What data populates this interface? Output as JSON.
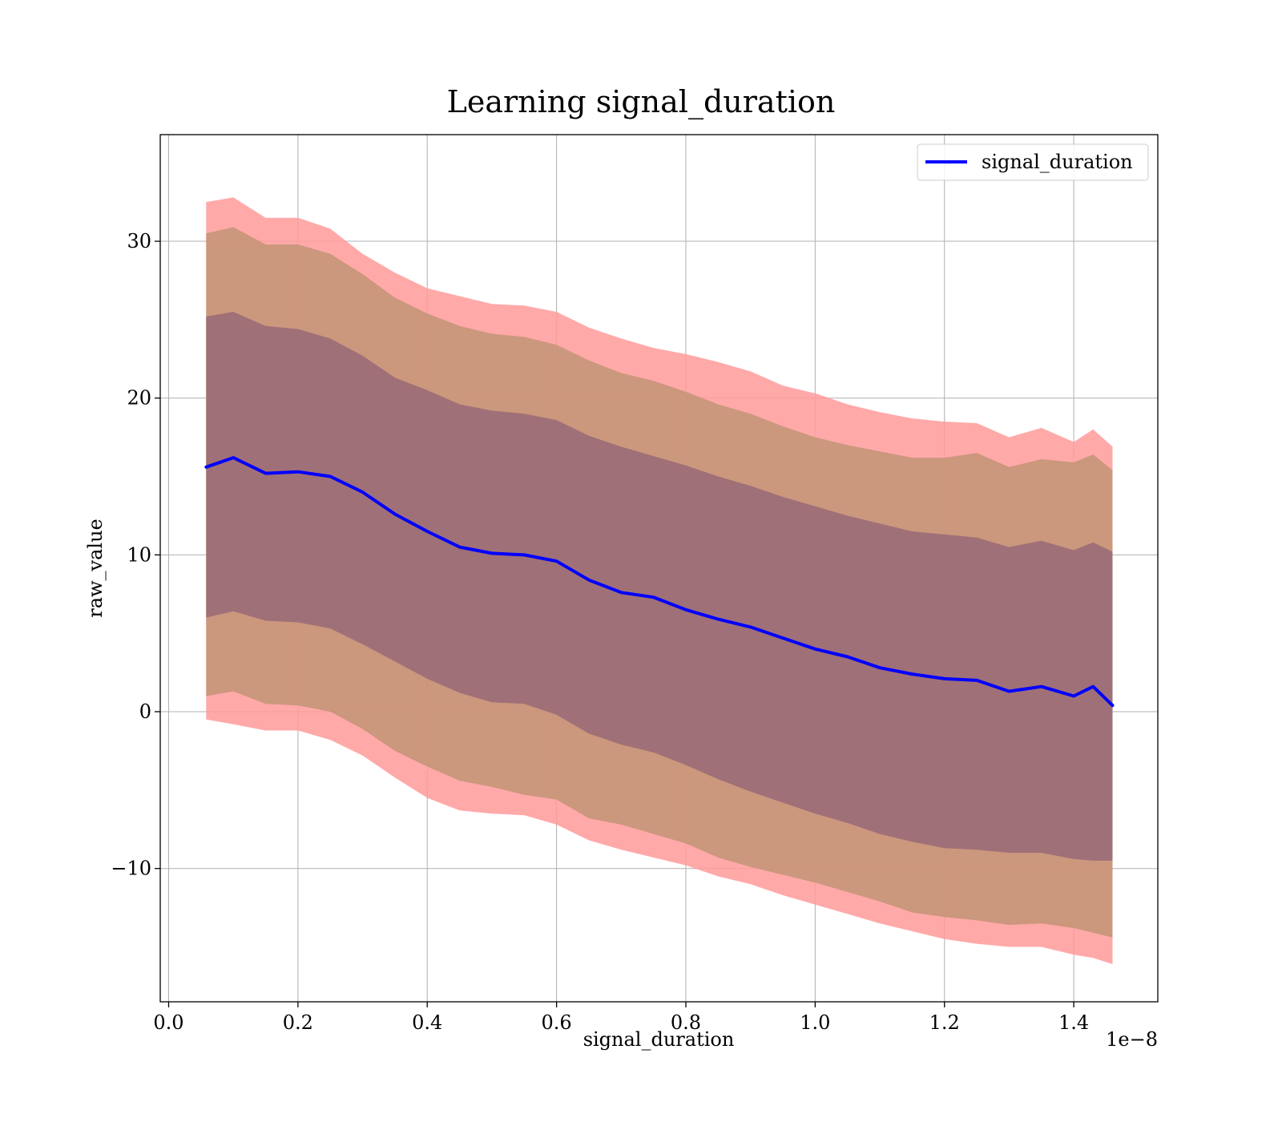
{
  "chart_data": {
    "type": "line",
    "title": "Learning signal_duration",
    "xlabel": "signal_duration",
    "ylabel": "raw_value",
    "x_offset_label": "1e−8",
    "xlim": [
      -0.013,
      1.53
    ],
    "ylim": [
      -18.5,
      36.8
    ],
    "xticks": [
      0.0,
      0.2,
      0.4,
      0.6,
      0.8,
      1.0,
      1.2,
      1.4
    ],
    "xtick_labels": [
      "0.0",
      "0.2",
      "0.4",
      "0.6",
      "0.8",
      "1.0",
      "1.2",
      "1.4"
    ],
    "yticks": [
      -10,
      0,
      10,
      20,
      30
    ],
    "ytick_labels": [
      "−10",
      "0",
      "10",
      "20",
      "30"
    ],
    "grid": true,
    "legend": {
      "position": "top-right",
      "entries": [
        "signal_duration"
      ]
    },
    "colors": {
      "line": "#0000ff",
      "band_outer": "#ff9a9a",
      "band_middle": "#c8967a",
      "band_inner": "#a07078",
      "grid": "#b0b0b0"
    },
    "x": [
      0.058,
      0.1,
      0.15,
      0.2,
      0.25,
      0.3,
      0.35,
      0.4,
      0.45,
      0.5,
      0.55,
      0.6,
      0.65,
      0.7,
      0.75,
      0.8,
      0.85,
      0.9,
      0.95,
      1.0,
      1.05,
      1.1,
      1.15,
      1.2,
      1.25,
      1.3,
      1.35,
      1.4,
      1.43,
      1.46
    ],
    "series": [
      {
        "name": "signal_duration",
        "values": [
          15.6,
          16.2,
          15.2,
          15.3,
          15.0,
          14.0,
          12.6,
          11.5,
          10.5,
          10.1,
          10.0,
          9.6,
          8.4,
          7.6,
          7.3,
          6.5,
          5.9,
          5.4,
          4.7,
          4.0,
          3.5,
          2.8,
          2.4,
          2.1,
          2.0,
          1.3,
          1.6,
          1.0,
          1.6,
          0.4
        ]
      }
    ],
    "bands": [
      {
        "upper": [
          32.5,
          32.8,
          31.5,
          31.5,
          30.8,
          29.2,
          28.0,
          27.0,
          26.5,
          26.0,
          25.9,
          25.5,
          24.5,
          23.8,
          23.2,
          22.8,
          22.3,
          21.7,
          20.8,
          20.3,
          19.6,
          19.1,
          18.7,
          18.5,
          18.4,
          17.5,
          18.1,
          17.2,
          18.0,
          16.9
        ],
        "lower": [
          -0.5,
          -0.8,
          -1.2,
          -1.2,
          -1.8,
          -2.8,
          -4.2,
          -5.5,
          -6.3,
          -6.5,
          -6.6,
          -7.2,
          -8.2,
          -8.8,
          -9.3,
          -9.8,
          -10.5,
          -11.0,
          -11.7,
          -12.3,
          -12.9,
          -13.5,
          -14.0,
          -14.5,
          -14.8,
          -15.0,
          -15.0,
          -15.5,
          -15.7,
          -16.1
        ]
      },
      {
        "upper": [
          30.5,
          30.9,
          29.8,
          29.8,
          29.2,
          27.9,
          26.4,
          25.4,
          24.6,
          24.1,
          23.9,
          23.4,
          22.4,
          21.6,
          21.1,
          20.4,
          19.6,
          19.0,
          18.2,
          17.5,
          17.0,
          16.6,
          16.2,
          16.2,
          16.5,
          15.6,
          16.1,
          15.9,
          16.4,
          15.4
        ],
        "lower": [
          1.0,
          1.3,
          0.5,
          0.4,
          0.0,
          -1.1,
          -2.5,
          -3.5,
          -4.4,
          -4.8,
          -5.3,
          -5.6,
          -6.8,
          -7.2,
          -7.8,
          -8.4,
          -9.3,
          -9.9,
          -10.4,
          -10.9,
          -11.5,
          -12.1,
          -12.8,
          -13.1,
          -13.3,
          -13.6,
          -13.5,
          -13.8,
          -14.1,
          -14.4
        ]
      },
      {
        "upper": [
          25.2,
          25.5,
          24.6,
          24.4,
          23.8,
          22.7,
          21.3,
          20.5,
          19.6,
          19.2,
          19.0,
          18.6,
          17.6,
          16.9,
          16.3,
          15.7,
          15.0,
          14.4,
          13.7,
          13.1,
          12.5,
          12.0,
          11.5,
          11.3,
          11.1,
          10.5,
          10.9,
          10.3,
          10.8,
          10.2
        ],
        "lower": [
          6.0,
          6.4,
          5.8,
          5.7,
          5.3,
          4.3,
          3.2,
          2.1,
          1.2,
          0.6,
          0.5,
          -0.2,
          -1.4,
          -2.1,
          -2.6,
          -3.4,
          -4.3,
          -5.1,
          -5.8,
          -6.5,
          -7.1,
          -7.8,
          -8.3,
          -8.7,
          -8.8,
          -9.0,
          -9.0,
          -9.4,
          -9.5,
          -9.5
        ]
      }
    ]
  }
}
